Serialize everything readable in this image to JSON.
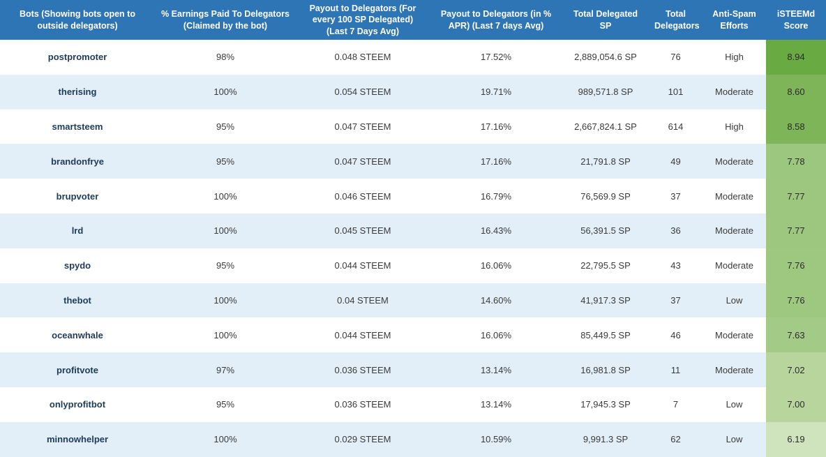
{
  "colors": {
    "header_bg": "#2e75b6",
    "header_text": "#ffffff",
    "stripe_bg": "#e2eef8",
    "bot_text": "#1f3b57",
    "body_text": "#3b3b3b"
  },
  "chart_data": {
    "type": "table",
    "columns": [
      {
        "key": "bot",
        "label": "Bots (Showing bots open to outside delegators)"
      },
      {
        "key": "pct_earnings",
        "label": "% Earnings Paid To Delegators (Claimed by the bot)"
      },
      {
        "key": "payout_per_100sp",
        "label": "Payout to Delegators (For every 100 SP Delegated) (Last 7 Days Avg)"
      },
      {
        "key": "payout_apr",
        "label": "Payout to Delegators (in % APR) (Last 7 days Avg)"
      },
      {
        "key": "total_delegated_sp",
        "label": "Total Delegated SP"
      },
      {
        "key": "total_delegators",
        "label": "Total Delegators"
      },
      {
        "key": "anti_spam",
        "label": "Anti-Spam Efforts"
      },
      {
        "key": "score",
        "label": "iSTEEMd Score"
      }
    ],
    "rows": [
      {
        "bot": "postpromoter",
        "pct_earnings": "98%",
        "payout_per_100sp": "0.048 STEEM",
        "payout_apr": "17.52%",
        "total_delegated_sp": "2,889,054.6 SP",
        "total_delegators": "76",
        "anti_spam": "High",
        "score": "8.94",
        "score_color": "#6aaa43"
      },
      {
        "bot": "therising",
        "pct_earnings": "100%",
        "payout_per_100sp": "0.054 STEEM",
        "payout_apr": "19.71%",
        "total_delegated_sp": "989,571.8 SP",
        "total_delegators": "101",
        "anti_spam": "Moderate",
        "score": "8.60",
        "score_color": "#7db558"
      },
      {
        "bot": "smartsteem",
        "pct_earnings": "95%",
        "payout_per_100sp": "0.047 STEEM",
        "payout_apr": "17.16%",
        "total_delegated_sp": "2,667,824.1 SP",
        "total_delegators": "614",
        "anti_spam": "High",
        "score": "8.58",
        "score_color": "#7eb559"
      },
      {
        "bot": "brandonfrye",
        "pct_earnings": "95%",
        "payout_per_100sp": "0.047 STEEM",
        "payout_apr": "17.16%",
        "total_delegated_sp": "21,791.8 SP",
        "total_delegators": "49",
        "anti_spam": "Moderate",
        "score": "7.78",
        "score_color": "#9cc77e"
      },
      {
        "bot": "brupvoter",
        "pct_earnings": "100%",
        "payout_per_100sp": "0.046 STEEM",
        "payout_apr": "16.79%",
        "total_delegated_sp": "76,569.9 SP",
        "total_delegators": "37",
        "anti_spam": "Moderate",
        "score": "7.77",
        "score_color": "#9dc77f"
      },
      {
        "bot": "lrd",
        "pct_earnings": "100%",
        "payout_per_100sp": "0.045 STEEM",
        "payout_apr": "16.43%",
        "total_delegated_sp": "56,391.5 SP",
        "total_delegators": "36",
        "anti_spam": "Moderate",
        "score": "7.77",
        "score_color": "#9dc77f"
      },
      {
        "bot": "spydo",
        "pct_earnings": "95%",
        "payout_per_100sp": "0.044 STEEM",
        "payout_apr": "16.06%",
        "total_delegated_sp": "22,795.5 SP",
        "total_delegators": "43",
        "anti_spam": "Moderate",
        "score": "7.76",
        "score_color": "#9ec880"
      },
      {
        "bot": "thebot",
        "pct_earnings": "100%",
        "payout_per_100sp": "0.04 STEEM",
        "payout_apr": "14.60%",
        "total_delegated_sp": "41,917.3 SP",
        "total_delegators": "37",
        "anti_spam": "Low",
        "score": "7.76",
        "score_color": "#9ec880"
      },
      {
        "bot": "oceanwhale",
        "pct_earnings": "100%",
        "payout_per_100sp": "0.044 STEEM",
        "payout_apr": "16.06%",
        "total_delegated_sp": "85,449.5 SP",
        "total_delegators": "46",
        "anti_spam": "Moderate",
        "score": "7.63",
        "score_color": "#a3ca86"
      },
      {
        "bot": "profitvote",
        "pct_earnings": "97%",
        "payout_per_100sp": "0.036 STEEM",
        "payout_apr": "13.14%",
        "total_delegated_sp": "16,981.8 SP",
        "total_delegators": "11",
        "anti_spam": "Moderate",
        "score": "7.02",
        "score_color": "#b7d59d"
      },
      {
        "bot": "onlyprofitbot",
        "pct_earnings": "95%",
        "payout_per_100sp": "0.036 STEEM",
        "payout_apr": "13.14%",
        "total_delegated_sp": "17,945.3 SP",
        "total_delegators": "7",
        "anti_spam": "Low",
        "score": "7.00",
        "score_color": "#b8d59e"
      },
      {
        "bot": "minnowhelper",
        "pct_earnings": "100%",
        "payout_per_100sp": "0.029 STEEM",
        "payout_apr": "10.59%",
        "total_delegated_sp": "9,991.3 SP",
        "total_delegators": "62",
        "anti_spam": "Low",
        "score": "6.19",
        "score_color": "#cfe3bd"
      }
    ]
  }
}
